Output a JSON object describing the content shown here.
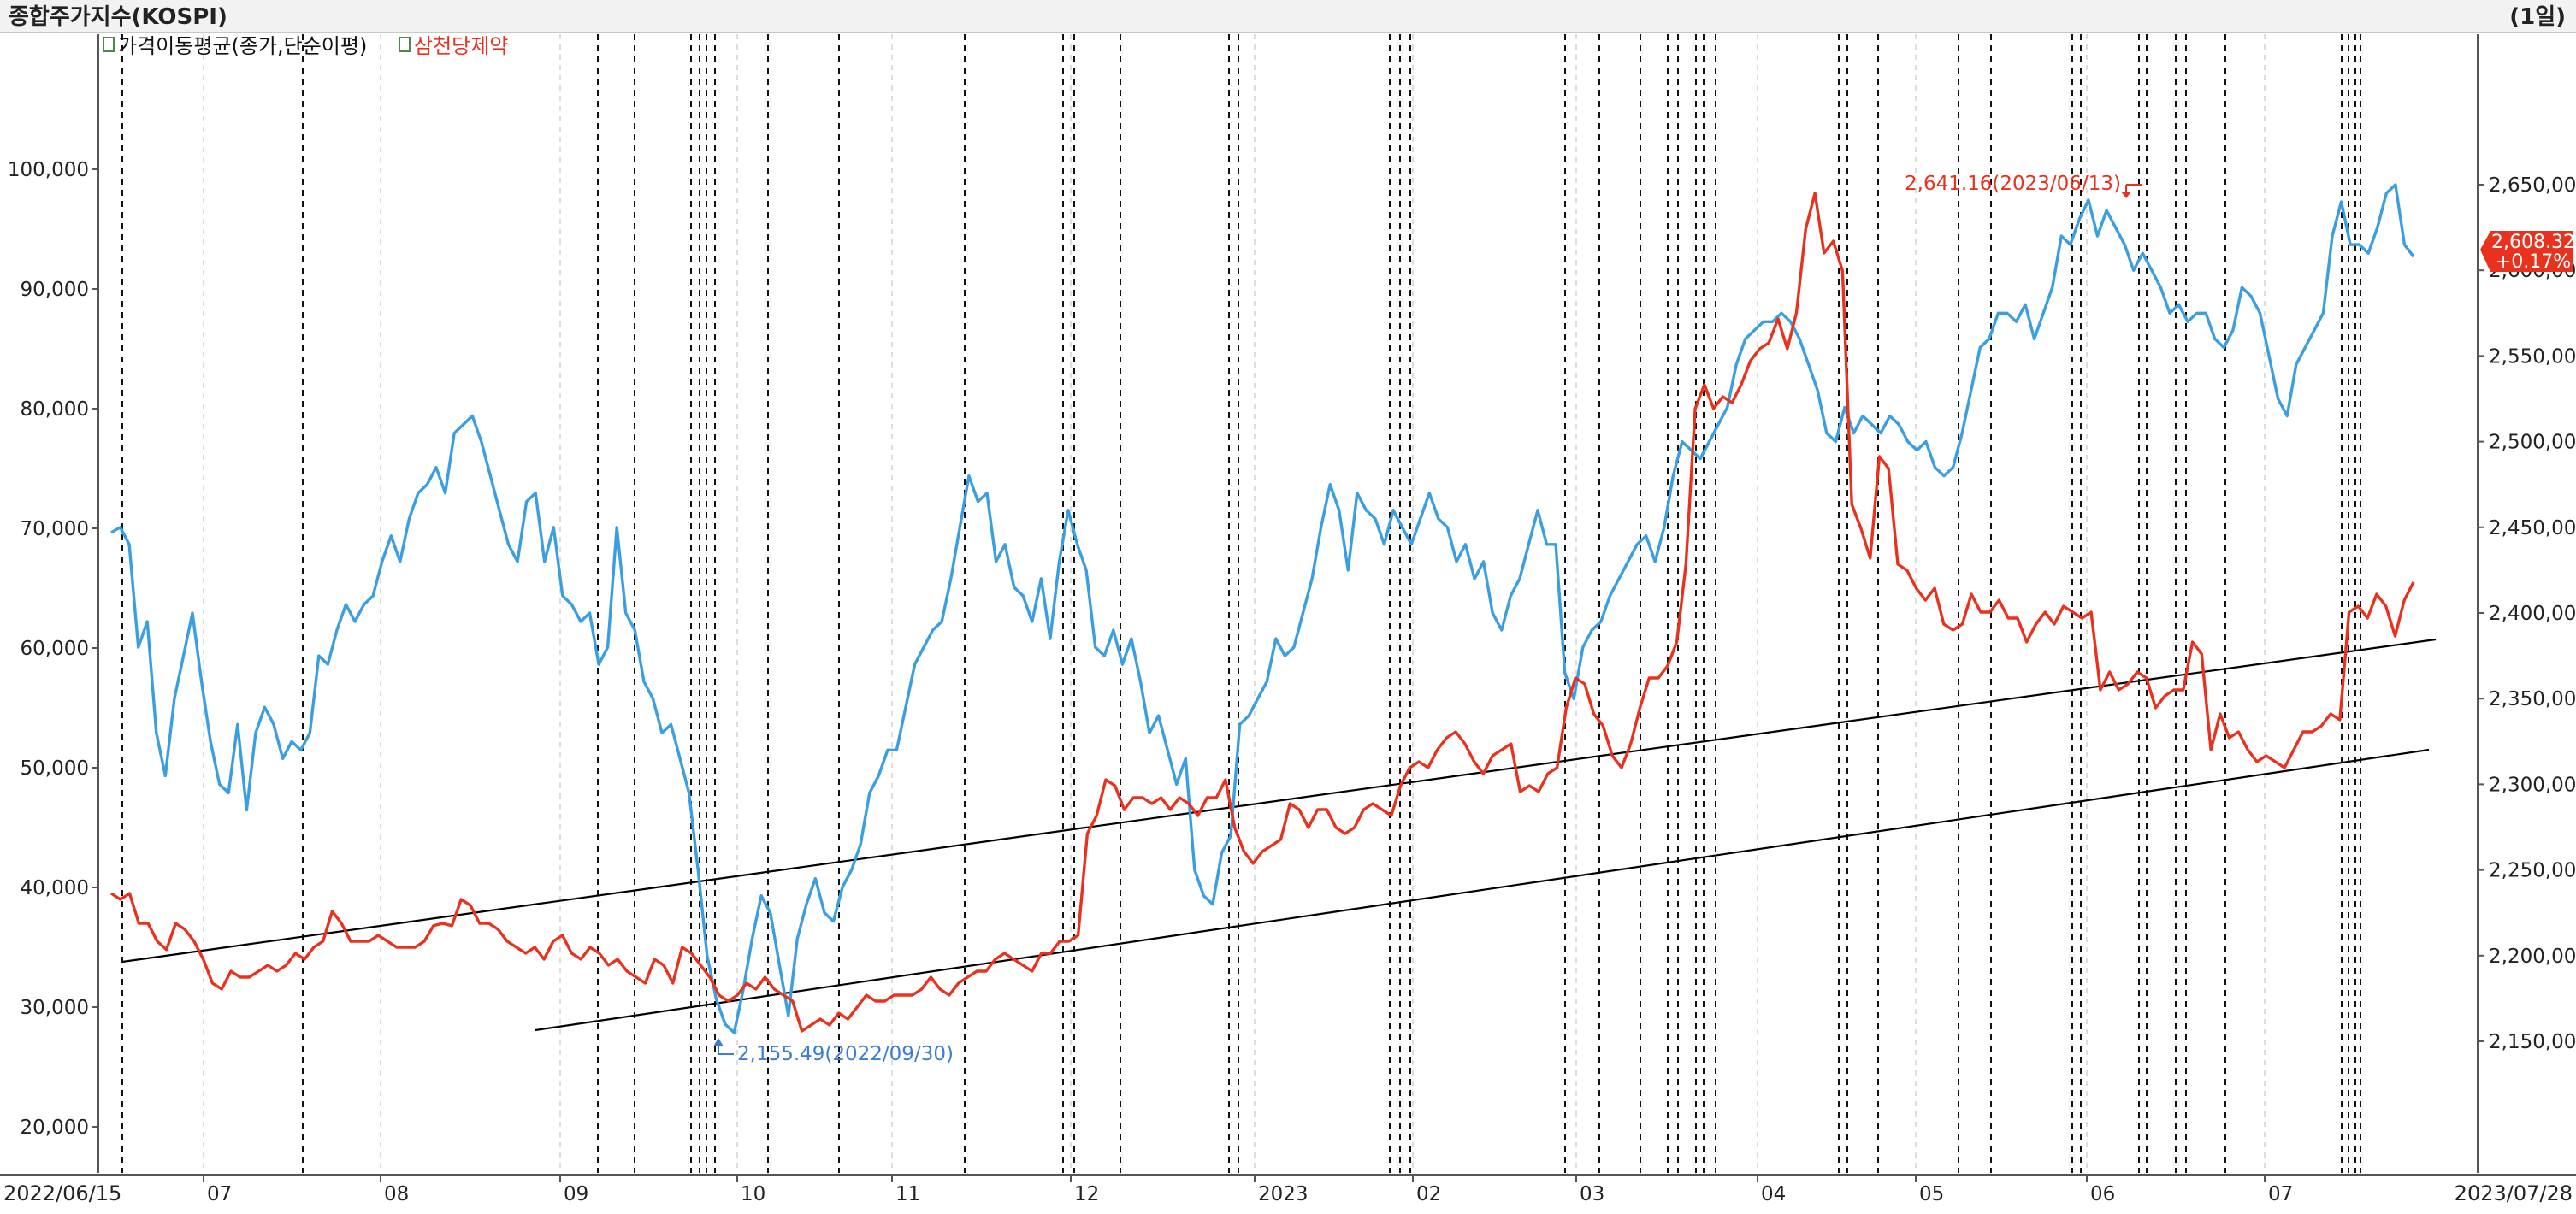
{
  "chart_data": {
    "type": "line",
    "title": "종합주가지수(KOSPI)",
    "period": "(1일)",
    "legend": [
      {
        "name": "가격이동평균(종가,단순이평)",
        "color": "#000000"
      },
      {
        "name": "삼천당제약",
        "color": "#e8321e"
      }
    ],
    "start_date_label": "2022/06/15",
    "end_date_label": "2023/07/28",
    "x_tick_labels": [
      "07",
      "08",
      "09",
      "10",
      "11",
      "12",
      "2023",
      "02",
      "03",
      "04",
      "05",
      "06",
      "07"
    ],
    "y_left": {
      "min": 15000,
      "max": 115000,
      "ticks": [
        20000,
        30000,
        40000,
        50000,
        60000,
        70000,
        80000,
        90000,
        100000
      ],
      "tick_labels": [
        "20,000",
        "30,000",
        "40,000",
        "50,000",
        "60,000",
        "70,000",
        "80,000",
        "90,000",
        "100,000"
      ]
    },
    "y_right": {
      "min": 2105,
      "max": 2705,
      "ticks": [
        2150,
        2200,
        2250,
        2300,
        2350,
        2400,
        2450,
        2500,
        2550,
        2600,
        2650
      ],
      "tick_labels": [
        "2,150,00",
        "2,200,00",
        "2,250,00",
        "2,300,00",
        "2,350,00",
        "2,400,00",
        "2,450,00",
        "2,500,00",
        "2,550,00",
        "2,600,00",
        "2,650,00"
      ]
    },
    "series": [
      {
        "name": "종합주가지수(KOSPI)",
        "axis": "right",
        "color": "#3a9ee0",
        "values": [
          2447,
          2450,
          2440,
          2380,
          2395,
          2330,
          2305,
          2350,
          2375,
          2400,
          2360,
          2325,
          2300,
          2295,
          2335,
          2285,
          2330,
          2345,
          2335,
          2315,
          2325,
          2320,
          2330,
          2375,
          2370,
          2390,
          2405,
          2395,
          2405,
          2410,
          2430,
          2445,
          2430,
          2455,
          2470,
          2475,
          2485,
          2470,
          2505,
          2510,
          2515,
          2500,
          2480,
          2460,
          2440,
          2430,
          2465,
          2470,
          2430,
          2450,
          2410,
          2405,
          2395,
          2400,
          2370,
          2380,
          2450,
          2400,
          2390,
          2360,
          2350,
          2330,
          2335,
          2315,
          2295,
          2250,
          2200,
          2175,
          2160,
          2155,
          2180,
          2210,
          2235,
          2225,
          2195,
          2165,
          2210,
          2230,
          2245,
          2225,
          2220,
          2240,
          2250,
          2265,
          2295,
          2305,
          2320,
          2320,
          2345,
          2370,
          2380,
          2390,
          2395,
          2420,
          2450,
          2480,
          2465,
          2470,
          2430,
          2440,
          2415,
          2410,
          2395,
          2420,
          2385,
          2430,
          2460,
          2440,
          2425,
          2380,
          2375,
          2390,
          2370,
          2385,
          2360,
          2330,
          2340,
          2320,
          2300,
          2315,
          2250,
          2235,
          2230,
          2260,
          2270,
          2335,
          2340,
          2350,
          2360,
          2385,
          2375,
          2380,
          2400,
          2420,
          2450,
          2475,
          2460,
          2425,
          2470,
          2460,
          2455,
          2440,
          2460,
          2450,
          2440,
          2455,
          2470,
          2455,
          2450,
          2430,
          2440,
          2420,
          2430,
          2400,
          2390,
          2410,
          2420,
          2440,
          2460,
          2440,
          2440,
          2365,
          2350,
          2380,
          2390,
          2395,
          2410,
          2420,
          2430,
          2440,
          2445,
          2430,
          2450,
          2480,
          2500,
          2495,
          2490,
          2500,
          2510,
          2520,
          2545,
          2560,
          2565,
          2570,
          2570,
          2575,
          2570,
          2560,
          2545,
          2530,
          2505,
          2500,
          2520,
          2505,
          2515,
          2510,
          2505,
          2515,
          2510,
          2500,
          2495,
          2500,
          2485,
          2480,
          2485,
          2505,
          2530,
          2555,
          2560,
          2575,
          2575,
          2570,
          2580,
          2560,
          2575,
          2590,
          2620,
          2615,
          2630,
          2641,
          2620,
          2635,
          2625,
          2615,
          2600,
          2610,
          2600,
          2590,
          2575,
          2580,
          2570,
          2575,
          2575,
          2560,
          2555,
          2565,
          2590,
          2585,
          2575,
          2550,
          2525,
          2515,
          2545,
          2555,
          2565,
          2575,
          2620,
          2640,
          2615,
          2615,
          2610,
          2625,
          2645,
          2650,
          2615,
          2608
        ]
      },
      {
        "name": "삼천당제약",
        "axis": "left",
        "color": "#e8321e",
        "values": [
          39500,
          39000,
          39500,
          37000,
          37000,
          35500,
          34800,
          37000,
          36500,
          35500,
          34000,
          32000,
          31500,
          33000,
          32500,
          32500,
          33000,
          33500,
          33000,
          33500,
          34500,
          34000,
          35000,
          35500,
          38000,
          37000,
          35500,
          35500,
          35500,
          36000,
          35500,
          35000,
          35000,
          35000,
          35500,
          36800,
          37000,
          36800,
          39000,
          38500,
          37000,
          37000,
          36500,
          35500,
          35000,
          34500,
          35000,
          34000,
          35500,
          36000,
          34500,
          34000,
          35000,
          34500,
          33500,
          34000,
          33000,
          32500,
          32000,
          34000,
          33500,
          32000,
          35000,
          34500,
          33500,
          32500,
          31000,
          30500,
          31000,
          32000,
          31500,
          32500,
          31500,
          31000,
          30500,
          28000,
          28500,
          29000,
          28500,
          29500,
          29000,
          30000,
          31000,
          30500,
          30500,
          31000,
          31000,
          31000,
          31500,
          32500,
          31500,
          31000,
          32000,
          32500,
          33000,
          33000,
          34000,
          34500,
          34000,
          33500,
          33000,
          34500,
          34500,
          35500,
          35500,
          36000,
          44500,
          46000,
          49000,
          48500,
          46500,
          47500,
          47500,
          47000,
          47500,
          46500,
          47500,
          47000,
          46000,
          47500,
          47500,
          49000,
          45000,
          43000,
          42000,
          43000,
          43500,
          44000,
          47000,
          46500,
          45000,
          46500,
          46500,
          45000,
          44500,
          45000,
          46500,
          47000,
          46500,
          46000,
          48500,
          50000,
          50500,
          50000,
          51500,
          52500,
          53000,
          52000,
          50500,
          49500,
          51000,
          51500,
          52000,
          48000,
          48500,
          48000,
          49500,
          50000,
          55000,
          57500,
          57000,
          54500,
          53500,
          51000,
          50000,
          52000,
          55000,
          57500,
          57500,
          58500,
          60500,
          67000,
          80000,
          82000,
          80000,
          81000,
          80500,
          82000,
          84000,
          85000,
          85500,
          87500,
          85000,
          88000,
          95000,
          98000,
          93000,
          94000,
          91500,
          72000,
          70000,
          67500,
          76000,
          75000,
          67000,
          66500,
          65000,
          64000,
          65000,
          62000,
          61500,
          62000,
          64500,
          63000,
          63000,
          64000,
          62500,
          62500,
          60500,
          62000,
          63000,
          62000,
          63500,
          63000,
          62500,
          63000,
          56500,
          58000,
          56500,
          57000,
          58000,
          57500,
          55000,
          56000,
          56500,
          56500,
          60500,
          59500,
          51500,
          54500,
          52500,
          53000,
          51500,
          50500,
          51000,
          50500,
          50000,
          51500,
          53000,
          53000,
          53500,
          54500,
          54000,
          63000,
          63500,
          62500,
          64500,
          63500,
          61000,
          64000,
          65500
        ]
      }
    ],
    "annotations": [
      {
        "text": "2,641.16(2023/06/13)",
        "color": "#e8321e"
      },
      {
        "text": "2,155.49(2022/09/30)",
        "color": "#3a7ed0"
      }
    ],
    "last_value": {
      "value": "2,608.32",
      "change": "+0.17%",
      "color": "#e8321e"
    },
    "trend_lines_color": "#000000",
    "grid": "dashed vertical event lines",
    "legend_position": "top-left"
  }
}
